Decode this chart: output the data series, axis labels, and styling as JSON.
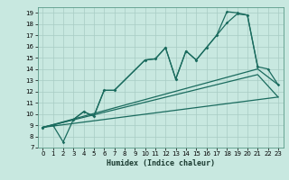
{
  "xlabel": "Humidex (Indice chaleur)",
  "bg_color": "#c8e8e0",
  "grid_color": "#a8ccc4",
  "line_color": "#1a6b5e",
  "xlim": [
    -0.5,
    23.5
  ],
  "ylim": [
    7,
    19.5
  ],
  "yticks": [
    7,
    8,
    9,
    10,
    11,
    12,
    13,
    14,
    15,
    16,
    17,
    18,
    19
  ],
  "xticks": [
    0,
    1,
    2,
    3,
    4,
    5,
    6,
    7,
    8,
    9,
    10,
    11,
    12,
    13,
    14,
    15,
    16,
    17,
    18,
    19,
    20,
    21,
    22,
    23
  ],
  "curve1_x": [
    0,
    1,
    2,
    3,
    4,
    5,
    6,
    7,
    10,
    11,
    12,
    13,
    14,
    15,
    16,
    17,
    18,
    19,
    20,
    21
  ],
  "curve1_y": [
    8.8,
    9.0,
    7.5,
    9.5,
    10.2,
    9.8,
    12.1,
    12.1,
    14.8,
    14.9,
    15.9,
    13.1,
    15.6,
    14.8,
    15.9,
    17.0,
    19.1,
    19.0,
    18.8,
    14.2
  ],
  "curve2_x": [
    0,
    1,
    3,
    4,
    5,
    6,
    7,
    10,
    11,
    12,
    13,
    14,
    15,
    16,
    17,
    18,
    19,
    20,
    21,
    22,
    23
  ],
  "curve2_y": [
    8.8,
    9.0,
    9.5,
    10.2,
    9.8,
    12.1,
    12.1,
    14.8,
    14.9,
    15.9,
    13.1,
    15.6,
    14.8,
    15.9,
    17.0,
    18.1,
    18.9,
    18.8,
    14.2,
    14.0,
    12.6
  ],
  "line3_x": [
    0,
    23
  ],
  "line3_y": [
    8.8,
    11.5
  ],
  "line4_x": [
    0,
    21,
    23
  ],
  "line4_y": [
    8.8,
    14.0,
    12.6
  ],
  "line5_x": [
    0,
    21,
    23
  ],
  "line5_y": [
    8.8,
    13.5,
    11.5
  ]
}
